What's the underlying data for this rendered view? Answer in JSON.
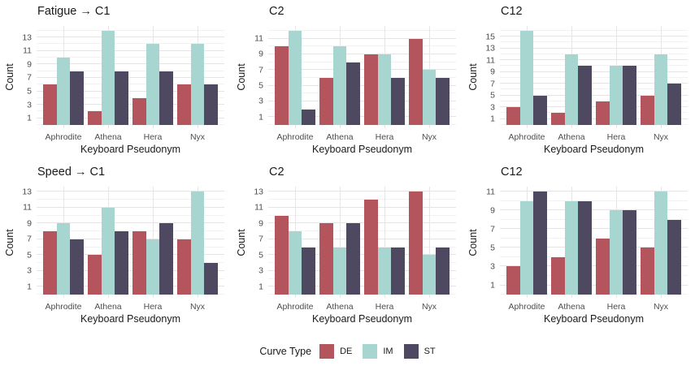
{
  "legend": {
    "title": "Curve Type",
    "entries": [
      {
        "label": "DE",
        "color": "#b4555e"
      },
      {
        "label": "IM",
        "color": "#a7d6d1"
      },
      {
        "label": "ST",
        "color": "#4e4960"
      }
    ],
    "position": "bottom"
  },
  "colors": {
    "background": "#ffffff",
    "grid_major": "#e4e4e4",
    "grid_minor": "#f2f2f2",
    "tick_text": "#4d4d4d",
    "title_text": "#1a1a1a"
  },
  "chart_data": [
    {
      "type": "bar",
      "title": "Fatigue → C1",
      "xlabel": "Keyboard Pseudonym",
      "ylabel": "Count",
      "categories": [
        "Aphrodite",
        "Athena",
        "Hera",
        "Nyx"
      ],
      "series": [
        {
          "name": "DE",
          "values": [
            6,
            2,
            4,
            6
          ]
        },
        {
          "name": "IM",
          "values": [
            10,
            14,
            12,
            12
          ]
        },
        {
          "name": "ST",
          "values": [
            8,
            8,
            8,
            6
          ]
        }
      ],
      "yticks": [
        1,
        3,
        5,
        7,
        9,
        11,
        13
      ],
      "ylim": [
        0,
        14.7
      ],
      "grid": true
    },
    {
      "type": "bar",
      "title": "C2",
      "xlabel": "Keyboard Pseudonym",
      "ylabel": "Count",
      "categories": [
        "Aphrodite",
        "Athena",
        "Hera",
        "Nyx"
      ],
      "series": [
        {
          "name": "DE",
          "values": [
            10,
            6,
            9,
            11
          ]
        },
        {
          "name": "IM",
          "values": [
            12,
            10,
            9,
            7
          ]
        },
        {
          "name": "ST",
          "values": [
            2,
            8,
            6,
            6
          ]
        }
      ],
      "yticks": [
        1,
        3,
        5,
        7,
        9,
        11
      ],
      "ylim": [
        0,
        12.6
      ],
      "grid": true
    },
    {
      "type": "bar",
      "title": "C12",
      "xlabel": "Keyboard Pseudonym",
      "ylabel": "Count",
      "categories": [
        "Aphrodite",
        "Athena",
        "Hera",
        "Nyx"
      ],
      "series": [
        {
          "name": "DE",
          "values": [
            3,
            2,
            4,
            5
          ]
        },
        {
          "name": "IM",
          "values": [
            16,
            12,
            10,
            12
          ]
        },
        {
          "name": "ST",
          "values": [
            5,
            10,
            10,
            7
          ]
        }
      ],
      "yticks": [
        1,
        3,
        5,
        7,
        9,
        11,
        13,
        15
      ],
      "ylim": [
        0,
        16.8
      ],
      "grid": true
    },
    {
      "type": "bar",
      "title": "Speed → C1",
      "xlabel": "Keyboard Pseudonym",
      "ylabel": "Count",
      "categories": [
        "Aphrodite",
        "Athena",
        "Hera",
        "Nyx"
      ],
      "series": [
        {
          "name": "DE",
          "values": [
            8,
            5,
            8,
            7
          ]
        },
        {
          "name": "IM",
          "values": [
            9,
            11,
            7,
            13
          ]
        },
        {
          "name": "ST",
          "values": [
            7,
            8,
            9,
            4
          ]
        }
      ],
      "yticks": [
        1,
        3,
        5,
        7,
        9,
        11,
        13
      ],
      "ylim": [
        0,
        13.65
      ],
      "grid": true
    },
    {
      "type": "bar",
      "title": "C2",
      "xlabel": "Keyboard Pseudonym",
      "ylabel": "Count",
      "categories": [
        "Aphrodite",
        "Athena",
        "Hera",
        "Nyx"
      ],
      "series": [
        {
          "name": "DE",
          "values": [
            10,
            9,
            12,
            13
          ]
        },
        {
          "name": "IM",
          "values": [
            8,
            6,
            6,
            5
          ]
        },
        {
          "name": "ST",
          "values": [
            6,
            9,
            6,
            6
          ]
        }
      ],
      "yticks": [
        1,
        3,
        5,
        7,
        9,
        11,
        13
      ],
      "ylim": [
        0,
        13.65
      ],
      "grid": true
    },
    {
      "type": "bar",
      "title": "C12",
      "xlabel": "Keyboard Pseudonym",
      "ylabel": "Count",
      "categories": [
        "Aphrodite",
        "Athena",
        "Hera",
        "Nyx"
      ],
      "series": [
        {
          "name": "DE",
          "values": [
            3,
            4,
            6,
            5
          ]
        },
        {
          "name": "IM",
          "values": [
            10,
            10,
            9,
            11
          ]
        },
        {
          "name": "ST",
          "values": [
            11,
            10,
            9,
            8
          ]
        }
      ],
      "yticks": [
        1,
        3,
        5,
        7,
        9,
        11
      ],
      "ylim": [
        0,
        11.55
      ],
      "grid": true
    }
  ]
}
